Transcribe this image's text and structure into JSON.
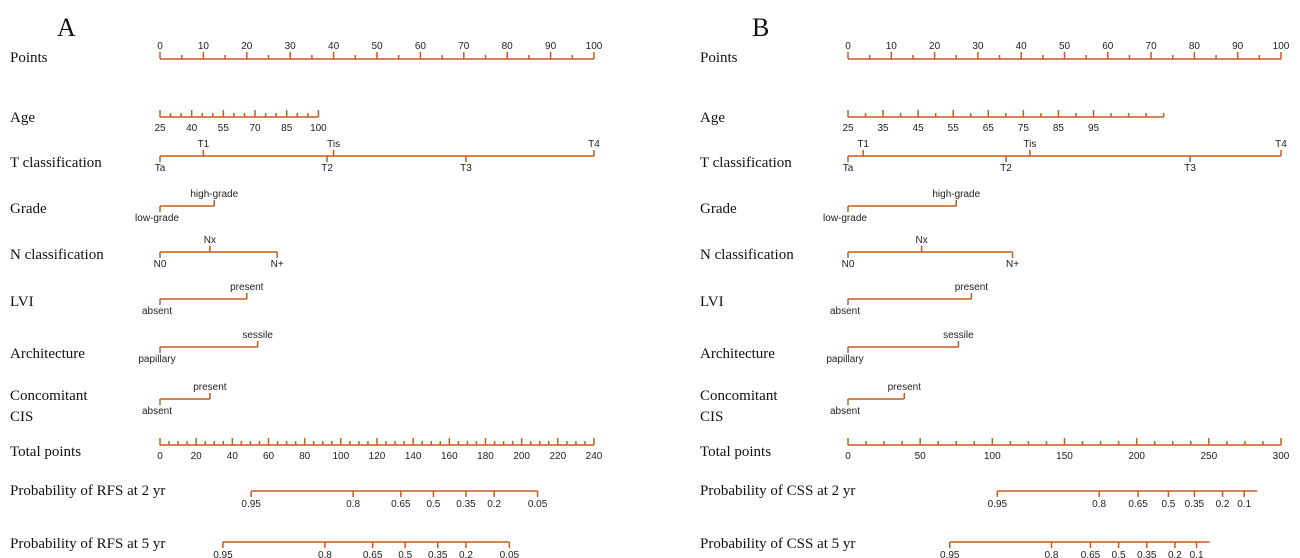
{
  "colors": {
    "axis": "#c85a1a",
    "text": "#222222"
  },
  "chart_data": [
    {
      "type": "nomogram",
      "panel_label": "A",
      "rows": [
        {
          "label": [
            "Points"
          ],
          "kind": "scale",
          "ticks": [
            "0",
            "10",
            "20",
            "30",
            "40",
            "50",
            "60",
            "70",
            "80",
            "90",
            "100"
          ],
          "start": 0,
          "end": 100,
          "minor": 2
        },
        {
          "label": [
            "Age"
          ],
          "kind": "scale",
          "ticks": [
            "25",
            "40",
            "55",
            "70",
            "85",
            "100"
          ],
          "start": 0,
          "end": 36.5,
          "minor": 3,
          "tick_spacing": 7.3
        },
        {
          "label": [
            "T classification"
          ],
          "kind": "cat",
          "end": 100,
          "levels": [
            {
              "name": "Ta",
              "points": 0,
              "side": "below"
            },
            {
              "name": "T1",
              "points": 10,
              "side": "above"
            },
            {
              "name": "T2",
              "points": 38.5,
              "side": "below"
            },
            {
              "name": "Tis",
              "points": 40,
              "side": "above"
            },
            {
              "name": "T3",
              "points": 70.5,
              "side": "below"
            },
            {
              "name": "T4",
              "points": 100,
              "side": "above"
            }
          ]
        },
        {
          "label": [
            "Grade"
          ],
          "kind": "cat",
          "end": 12.5,
          "levels": [
            {
              "name": "low-grade",
              "points": 0,
              "side": "below"
            },
            {
              "name": "high-grade",
              "points": 12.5,
              "side": "above"
            }
          ]
        },
        {
          "label": [
            "N classification"
          ],
          "kind": "cat",
          "end": 27,
          "levels": [
            {
              "name": "N0",
              "points": 0,
              "side": "below"
            },
            {
              "name": "Nx",
              "points": 11.5,
              "side": "above"
            },
            {
              "name": "N+",
              "points": 27,
              "side": "below"
            }
          ]
        },
        {
          "label": [
            "LVI"
          ],
          "kind": "cat",
          "end": 20,
          "levels": [
            {
              "name": "absent",
              "points": 0,
              "side": "below"
            },
            {
              "name": "present",
              "points": 20,
              "side": "above"
            }
          ]
        },
        {
          "label": [
            "Architecture"
          ],
          "kind": "cat",
          "end": 22.5,
          "levels": [
            {
              "name": "papillary",
              "points": 0,
              "side": "below"
            },
            {
              "name": "sessile",
              "points": 22.5,
              "side": "above"
            }
          ]
        },
        {
          "label": [
            "Concomitant",
            "CIS"
          ],
          "kind": "cat",
          "end": 11.5,
          "levels": [
            {
              "name": "absent",
              "points": 0,
              "side": "below"
            },
            {
              "name": "present",
              "points": 11.5,
              "side": "above"
            }
          ]
        },
        {
          "label": [
            "Total points"
          ],
          "kind": "scale",
          "ticks": [
            "0",
            "20",
            "40",
            "60",
            "80",
            "100",
            "120",
            "140",
            "160",
            "180",
            "200",
            "220",
            "240"
          ],
          "start": 0,
          "end": 100,
          "minor": 4
        },
        {
          "label": [
            "Probability of RFS at 2 yr"
          ],
          "kind": "prob",
          "start": 21,
          "end": 87,
          "values": [
            {
              "v": "0.95",
              "p": 21
            },
            {
              "v": "0.8",
              "p": 44.5
            },
            {
              "v": "0.65",
              "p": 55.5
            },
            {
              "v": "0.5",
              "p": 63
            },
            {
              "v": "0.35",
              "p": 70.5
            },
            {
              "v": "0.2",
              "p": 77
            },
            {
              "v": "0.05",
              "p": 87
            }
          ]
        },
        {
          "label": [
            "Probability of RFS at 5 yr"
          ],
          "kind": "prob",
          "start": 14.5,
          "end": 80.5,
          "values": [
            {
              "v": "0.95",
              "p": 14.5
            },
            {
              "v": "0.8",
              "p": 38
            },
            {
              "v": "0.65",
              "p": 49
            },
            {
              "v": "0.5",
              "p": 56.5
            },
            {
              "v": "0.35",
              "p": 64
            },
            {
              "v": "0.2",
              "p": 70.5
            },
            {
              "v": "0.05",
              "p": 80.5
            }
          ]
        }
      ]
    },
    {
      "type": "nomogram",
      "panel_label": "B",
      "rows": [
        {
          "label": [
            "Points"
          ],
          "kind": "scale",
          "ticks": [
            "0",
            "10",
            "20",
            "30",
            "40",
            "50",
            "60",
            "70",
            "80",
            "90",
            "100"
          ],
          "start": 0,
          "end": 100,
          "minor": 2
        },
        {
          "label": [
            "Age"
          ],
          "kind": "scale",
          "ticks": [
            "25",
            "35",
            "45",
            "55",
            "65",
            "75",
            "85",
            "95"
          ],
          "start": 0,
          "end": 73,
          "minor": 2,
          "tick_spacing": 8.1
        },
        {
          "label": [
            "T classification"
          ],
          "kind": "cat",
          "end": 100,
          "levels": [
            {
              "name": "Ta",
              "points": 0,
              "side": "below"
            },
            {
              "name": "T1",
              "points": 3.5,
              "side": "above"
            },
            {
              "name": "T2",
              "points": 36.5,
              "side": "below"
            },
            {
              "name": "Tis",
              "points": 42,
              "side": "above"
            },
            {
              "name": "T3",
              "points": 79,
              "side": "below"
            },
            {
              "name": "T4",
              "points": 100,
              "side": "above"
            }
          ]
        },
        {
          "label": [
            "Grade"
          ],
          "kind": "cat",
          "end": 25,
          "levels": [
            {
              "name": "low-grade",
              "points": 0,
              "side": "below"
            },
            {
              "name": "high-grade",
              "points": 25,
              "side": "above"
            }
          ]
        },
        {
          "label": [
            "N classification"
          ],
          "kind": "cat",
          "end": 38,
          "levels": [
            {
              "name": "N0",
              "points": 0,
              "side": "below"
            },
            {
              "name": "Nx",
              "points": 17,
              "side": "above"
            },
            {
              "name": "N+",
              "points": 38,
              "side": "below"
            }
          ]
        },
        {
          "label": [
            "LVI"
          ],
          "kind": "cat",
          "end": 28.5,
          "levels": [
            {
              "name": "absent",
              "points": 0,
              "side": "below"
            },
            {
              "name": "present",
              "points": 28.5,
              "side": "above"
            }
          ]
        },
        {
          "label": [
            "Architecture"
          ],
          "kind": "cat",
          "end": 25.5,
          "levels": [
            {
              "name": "papillary",
              "points": 0,
              "side": "below"
            },
            {
              "name": "sessile",
              "points": 25.5,
              "side": "above"
            }
          ]
        },
        {
          "label": [
            "Concomitant",
            "CIS"
          ],
          "kind": "cat",
          "end": 13,
          "levels": [
            {
              "name": "absent",
              "points": 0,
              "side": "below"
            },
            {
              "name": "present",
              "points": 13,
              "side": "above"
            }
          ]
        },
        {
          "label": [
            "Total points"
          ],
          "kind": "scale",
          "ticks": [
            "0",
            "50",
            "100",
            "150",
            "200",
            "250",
            "300"
          ],
          "start": 0,
          "end": 100,
          "minor": 4
        },
        {
          "label": [
            "Probability of CSS at 2 yr"
          ],
          "kind": "prob",
          "start": 34.5,
          "end": 94.5,
          "values": [
            {
              "v": "0.95",
              "p": 34.5
            },
            {
              "v": "0.8",
              "p": 58
            },
            {
              "v": "0.65",
              "p": 67
            },
            {
              "v": "0.5",
              "p": 74
            },
            {
              "v": "0.35",
              "p": 80
            },
            {
              "v": "0.2",
              "p": 86.5
            },
            {
              "v": "0.1",
              "p": 91.5
            }
          ]
        },
        {
          "label": [
            "Probability of CSS at 5 yr"
          ],
          "kind": "prob",
          "start": 23.5,
          "end": 83.5,
          "values": [
            {
              "v": "0.95",
              "p": 23.5
            },
            {
              "v": "0.8",
              "p": 47
            },
            {
              "v": "0.65",
              "p": 56
            },
            {
              "v": "0.5",
              "p": 62.5
            },
            {
              "v": "0.35",
              "p": 69
            },
            {
              "v": "0.2",
              "p": 75.5
            },
            {
              "v": "0.1",
              "p": 80.5
            }
          ]
        }
      ]
    }
  ]
}
